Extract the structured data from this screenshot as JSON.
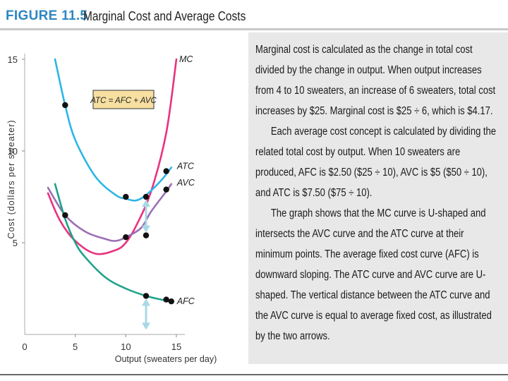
{
  "header": {
    "figure_label": "FIGURE 11.5",
    "title": "Marginal Cost and Average Costs"
  },
  "chart_data": {
    "type": "line",
    "xlabel": "Output (sweaters per day)",
    "ylabel": "Cost (dollars per sweater)",
    "xlim": [
      0,
      15
    ],
    "ylim": [
      0,
      15
    ],
    "x_ticks": [
      0,
      5,
      10,
      15
    ],
    "y_ticks": [
      5,
      10,
      15
    ],
    "box_label": "ATC = AFC + AVC",
    "series": [
      {
        "name": "MC",
        "label": "MC",
        "color": "#e8337f",
        "points": [
          [
            2.3,
            7.7
          ],
          [
            3.5,
            6.2
          ],
          [
            5,
            5.1
          ],
          [
            7,
            4.4
          ],
          [
            9,
            4.6
          ],
          [
            10,
            5.0
          ],
          [
            11,
            5.9
          ],
          [
            12.5,
            7.8
          ],
          [
            14,
            11
          ],
          [
            15,
            15
          ]
        ]
      },
      {
        "name": "ATC",
        "label": "ATC",
        "color": "#2bb6e6",
        "points": [
          [
            3,
            15
          ],
          [
            4,
            12.5
          ],
          [
            5,
            10.6
          ],
          [
            7,
            8.6
          ],
          [
            9,
            7.6
          ],
          [
            10,
            7.4
          ],
          [
            11,
            7.3
          ],
          [
            12,
            7.6
          ],
          [
            13.5,
            8.4
          ],
          [
            14.5,
            9.1
          ]
        ]
      },
      {
        "name": "AVC",
        "label": "AVC",
        "color": "#9b6fb5",
        "points": [
          [
            2.3,
            8.0
          ],
          [
            4,
            6.5
          ],
          [
            6,
            5.6
          ],
          [
            8,
            5.2
          ],
          [
            9,
            5.1
          ],
          [
            10,
            5.3
          ],
          [
            11.5,
            5.8
          ],
          [
            12.5,
            6.7
          ],
          [
            14,
            7.8
          ],
          [
            14.5,
            8.2
          ]
        ]
      },
      {
        "name": "AFC",
        "label": "AFC",
        "color": "#1fa38a",
        "points": [
          [
            3,
            8.2
          ],
          [
            4,
            6.3
          ],
          [
            5,
            5.0
          ],
          [
            6,
            4.2
          ],
          [
            8,
            3.1
          ],
          [
            10,
            2.5
          ],
          [
            12,
            2.1
          ],
          [
            13.5,
            1.9
          ],
          [
            14.5,
            1.8
          ]
        ]
      }
    ],
    "markers": [
      {
        "series": "ATC",
        "x": 4,
        "y": 12.5
      },
      {
        "series": "ATC",
        "x": 10,
        "y": 7.5
      },
      {
        "series": "ATC",
        "x": 12,
        "y": 7.5
      },
      {
        "series": "ATC",
        "x": 14,
        "y": 8.9
      },
      {
        "series": "AVC",
        "x": 4,
        "y": 6.5
      },
      {
        "series": "AVC",
        "x": 10,
        "y": 5.3
      },
      {
        "series": "AVC",
        "x": 12,
        "y": 5.4
      },
      {
        "series": "AVC",
        "x": 14,
        "y": 7.9
      },
      {
        "series": "AFC",
        "x": 12,
        "y": 2.1
      },
      {
        "series": "AFC",
        "x": 14,
        "y": 1.9
      },
      {
        "series": "AFC",
        "x": 14.5,
        "y": 1.8
      }
    ],
    "arrows": [
      {
        "x": 12,
        "from": 5.4,
        "to": 7.5
      },
      {
        "x": 12,
        "from": 0.1,
        "to": 2.1
      }
    ]
  },
  "text_panel": {
    "paragraphs": [
      "Marginal cost is calculated as the change in total cost divided by the change in output. When output increases from 4 to 10 sweaters, an increase of 6 sweaters, total cost increases by $25. Marginal cost is $25 ÷ 6, which is $4.17.",
      "Each average cost concept is calculated by dividing the related total cost by output. When 10 sweaters are produced, AFC is $2.50 ($25 ÷ 10), AVC is $5 ($50 ÷ 10), and ATC is $7.50 ($75 ÷ 10).",
      "The graph shows that the MC curve is U-shaped and intersects the AVC curve and the ATC curve at their minimum points. The average fixed cost curve (AFC) is downward sloping. The ATC curve and AVC curve are U-shaped. The vertical distance between the ATC curve and the AVC curve is equal to average fixed cost, as illustrated by the two arrows."
    ]
  }
}
